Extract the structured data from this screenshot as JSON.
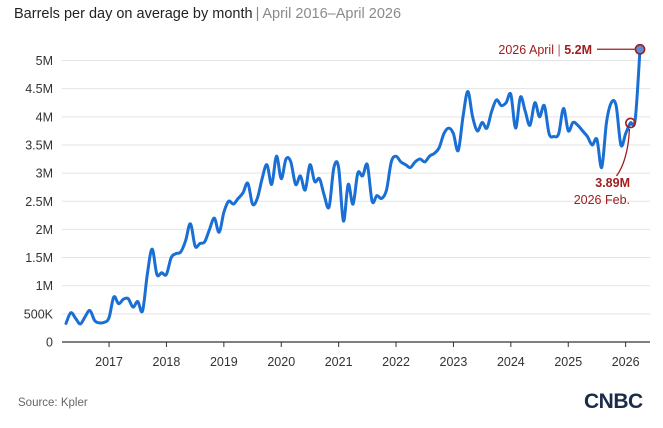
{
  "title": {
    "main": "Barrels per day on average by month",
    "separator": "|",
    "subtitle": "April 2016–April 2026"
  },
  "source": "Source: Kpler",
  "logo": "CNBC",
  "colors": {
    "line": "#1a6fd4",
    "annotation": "#a11d1d",
    "grid": "#e3e3e3",
    "axis": "#333333"
  },
  "chart_data": {
    "type": "line",
    "title": "Barrels per day on average by month",
    "subtitle": "April 2016–April 2026",
    "xlabel": "",
    "ylabel": "",
    "x_start": "2016-04",
    "x_end": "2026-04",
    "xticks": [
      "2017",
      "2018",
      "2019",
      "2020",
      "2021",
      "2022",
      "2023",
      "2024",
      "2025",
      "2026"
    ],
    "ylim": [
      0,
      5400000
    ],
    "yticks": [
      0,
      500000,
      1000000,
      1500000,
      2000000,
      2500000,
      3000000,
      3500000,
      4000000,
      4500000,
      5000000
    ],
    "ytick_labels": [
      "0",
      "500K",
      "1M",
      "1.5M",
      "2M",
      "2.5M",
      "3M",
      "3.5M",
      "4M",
      "4.5M",
      "5M"
    ],
    "grid": true,
    "values": [
      330000,
      520000,
      420000,
      320000,
      450000,
      560000,
      380000,
      340000,
      350000,
      430000,
      800000,
      680000,
      760000,
      770000,
      620000,
      720000,
      550000,
      1200000,
      1650000,
      1200000,
      1230000,
      1200000,
      1500000,
      1570000,
      1600000,
      1800000,
      2100000,
      1700000,
      1750000,
      1780000,
      2000000,
      2200000,
      1950000,
      2300000,
      2500000,
      2450000,
      2550000,
      2650000,
      2820000,
      2450000,
      2550000,
      2900000,
      3150000,
      2800000,
      3300000,
      2900000,
      3250000,
      3200000,
      2800000,
      2950000,
      2700000,
      3150000,
      2850000,
      2900000,
      2600000,
      2400000,
      3100000,
      3100000,
      2150000,
      2800000,
      2450000,
      3000000,
      2950000,
      3150000,
      2500000,
      2600000,
      2550000,
      2700000,
      3200000,
      3300000,
      3200000,
      3150000,
      3100000,
      3200000,
      3250000,
      3200000,
      3300000,
      3350000,
      3450000,
      3700000,
      3800000,
      3700000,
      3400000,
      4000000,
      4450000,
      4000000,
      3750000,
      3900000,
      3800000,
      4100000,
      4300000,
      4200000,
      4250000,
      4400000,
      3800000,
      4350000,
      4100000,
      3850000,
      4250000,
      4000000,
      4200000,
      3700000,
      3650000,
      3700000,
      4150000,
      3750000,
      3900000,
      3850000,
      3750000,
      3650000,
      3500000,
      3600000,
      3100000,
      3900000,
      4250000,
      4200000,
      3500000,
      3700000,
      3890000,
      3950000,
      5200000
    ],
    "annotations": [
      {
        "date_label": "2026 April",
        "separator": "|",
        "value_label": "5.2M",
        "value": 5200000,
        "index": 120
      },
      {
        "date_label": "2026 Feb.",
        "value_label": "3.89M",
        "value": 3890000,
        "index": 118
      }
    ]
  }
}
